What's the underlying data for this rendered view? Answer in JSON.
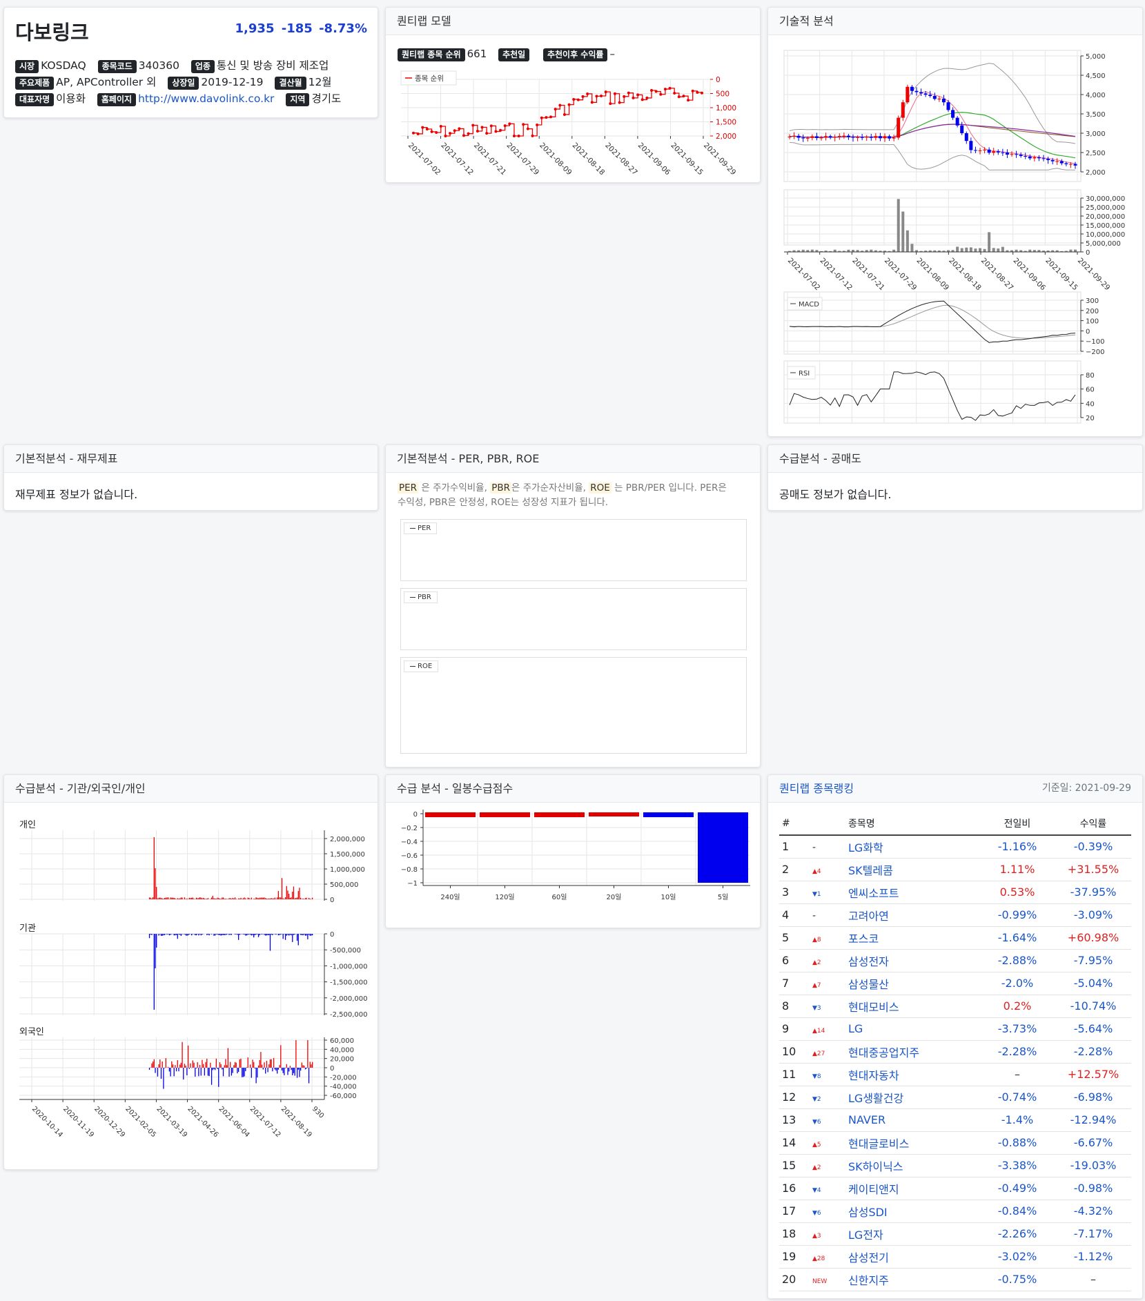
{
  "stock": {
    "name": "다보링크",
    "price": "1,935",
    "change": "-185",
    "change_pct": "-8.73%",
    "market_label": "시장",
    "market": "KOSDAQ",
    "code_label": "종목코드",
    "code": "340360",
    "industry_label": "업종",
    "industry": "통신 및 방송 장비 제조업",
    "product_label": "주요제품",
    "product": "AP, APController 외",
    "listing_label": "상장일",
    "listing": "2019-12-19",
    "fiscal_label": "결산월",
    "fiscal": "12월",
    "ceo_label": "대표자명",
    "ceo": "이용화",
    "homepage_label": "홈페이지",
    "homepage": "http://www.davolink.co.kr",
    "region_label": "지역",
    "region": "경기도"
  },
  "quantilab": {
    "title": "퀀티랩 모델",
    "rank_label": "퀀티랩 종목 순위",
    "rank": "661",
    "rec_label": "추천일",
    "ret_label": "추천이후 수익률",
    "ret": "–",
    "legend": "종목 순위",
    "y_ticks": [
      "0",
      "500",
      "1,000",
      "1,500",
      "2,000"
    ],
    "x_ticks": [
      "2021-07-02",
      "2021-07-12",
      "2021-07-21",
      "2021-07-29",
      "2021-08-09",
      "2021-08-18",
      "2021-08-27",
      "2021-09-06",
      "2021-09-15",
      "2021-09-29"
    ]
  },
  "technical": {
    "title": "기술적 분석",
    "price_ticks": [
      "5,000",
      "4,500",
      "4,000",
      "3,500",
      "3,000",
      "2,500",
      "2,000"
    ],
    "volume_ticks": [
      "30,000,000",
      "25,000,000",
      "20,000,000",
      "15,000,000",
      "10,000,000",
      "5,000,000",
      "0"
    ],
    "x_ticks": [
      "2021-07-02",
      "2021-07-12",
      "2021-07-21",
      "2021-07-29",
      "2021-08-09",
      "2021-08-18",
      "2021-08-27",
      "2021-09-06",
      "2021-09-15",
      "2021-09-29"
    ],
    "macd_label": "MACD",
    "macd_ticks": [
      "300",
      "200",
      "100",
      "0",
      "−100",
      "−200"
    ],
    "rsi_label": "RSI",
    "rsi_ticks": [
      "80",
      "60",
      "40",
      "20"
    ]
  },
  "fundamental": {
    "title": "기본적분석 - 재무제표",
    "empty": "재무제표 정보가 없습니다."
  },
  "ratios": {
    "title": "기본적분석 - PER, PBR, ROE",
    "t_per": "PER",
    "d_per": "은 주가수익비율,",
    "t_pbr": "PBR",
    "d_pbr": "은 주가순자산비율,",
    "t_roe": "ROE",
    "d_roe": "는 PBR/PER 입니다. PER은",
    "desc2": "수익성, PBR은 안정성, ROE는 성장성 지표가 됩니다.",
    "legend_per": "PER",
    "legend_pbr": "PBR",
    "legend_roe": "ROE"
  },
  "short": {
    "title": "수급분석 - 공매도",
    "empty": "공매도 정보가 없습니다."
  },
  "investors": {
    "title": "수급분석 - 기관/외국인/개인",
    "individual": "개인",
    "institution": "기관",
    "foreign": "외국인",
    "ind_ticks": [
      "2,000,000",
      "1,500,000",
      "1,000,000",
      "500,000",
      "0"
    ],
    "inst_ticks": [
      "0",
      "-500,000",
      "-1,000,000",
      "-1,500,000",
      "-2,000,000",
      "-2,500,000"
    ],
    "for_ticks": [
      "60,000",
      "40,000",
      "20,000",
      "0",
      "-20,000",
      "-40,000",
      "-60,000"
    ],
    "x_ticks": [
      "2020-10-14",
      "2020-11-19",
      "2020-12-29",
      "2021-02-05",
      "2021-03-19",
      "2021-04-26",
      "2021-06-04",
      "2021-07-12",
      "2021-08-19",
      "930"
    ]
  },
  "daily_score": {
    "title": "수급 분석 - 일봉수급점수",
    "y_ticks": [
      "0",
      "−0.2",
      "−0.4",
      "−0.6",
      "−0.8",
      "−1"
    ]
  },
  "chart_data": {
    "type": "bar",
    "categories": [
      "240일",
      "120일",
      "60일",
      "20일",
      "10일",
      "5일"
    ],
    "values": [
      -0.05,
      -0.05,
      -0.05,
      -0.04,
      -0.05,
      -1
    ],
    "ylim": [
      -1,
      0
    ],
    "colors": [
      "#e00000",
      "#e00000",
      "#e00000",
      "#e00000",
      "#0000ee",
      "#0000ee"
    ]
  },
  "ranking": {
    "title": "퀀티랩 종목랭킹",
    "date_label": "기준일:",
    "date": "2021-09-29",
    "headers": [
      "#",
      "종목명",
      "전일비",
      "수익률"
    ],
    "rows": [
      {
        "n": "1",
        "mv": "-",
        "mvdir": "neu",
        "name": "LG화학",
        "chg": "-1.16%",
        "cdir": "down",
        "ret": "-0.39%",
        "rdir": "down"
      },
      {
        "n": "2",
        "mv": "▲4",
        "mvdir": "up",
        "name": "SK텔레콤",
        "chg": "1.11%",
        "cdir": "up",
        "ret": "+31.55%",
        "rdir": "up"
      },
      {
        "n": "3",
        "mv": "▼1",
        "mvdir": "down",
        "name": "엔씨소프트",
        "chg": "0.53%",
        "cdir": "up",
        "ret": "-37.95%",
        "rdir": "down"
      },
      {
        "n": "4",
        "mv": "-",
        "mvdir": "neu",
        "name": "고려아연",
        "chg": "-0.99%",
        "cdir": "down",
        "ret": "-3.09%",
        "rdir": "down"
      },
      {
        "n": "5",
        "mv": "▲8",
        "mvdir": "up",
        "name": "포스코",
        "chg": "-1.64%",
        "cdir": "down",
        "ret": "+60.98%",
        "rdir": "up"
      },
      {
        "n": "6",
        "mv": "▲2",
        "mvdir": "up",
        "name": "삼성전자",
        "chg": "-2.88%",
        "cdir": "down",
        "ret": "-7.95%",
        "rdir": "down"
      },
      {
        "n": "7",
        "mv": "▲7",
        "mvdir": "up",
        "name": "삼성물산",
        "chg": "-2.0%",
        "cdir": "down",
        "ret": "-5.04%",
        "rdir": "down"
      },
      {
        "n": "8",
        "mv": "▼3",
        "mvdir": "down",
        "name": "현대모비스",
        "chg": "0.2%",
        "cdir": "up",
        "ret": "-10.74%",
        "rdir": "down"
      },
      {
        "n": "9",
        "mv": "▲14",
        "mvdir": "up",
        "name": "LG",
        "chg": "-3.73%",
        "cdir": "down",
        "ret": "-5.64%",
        "rdir": "down"
      },
      {
        "n": "10",
        "mv": "▲27",
        "mvdir": "up",
        "name": "현대중공업지주",
        "chg": "-2.28%",
        "cdir": "down",
        "ret": "-2.28%",
        "rdir": "down"
      },
      {
        "n": "11",
        "mv": "▼8",
        "mvdir": "down",
        "name": "현대자동차",
        "chg": "–",
        "cdir": "neu",
        "ret": "+12.57%",
        "rdir": "up"
      },
      {
        "n": "12",
        "mv": "▼2",
        "mvdir": "down",
        "name": "LG생활건강",
        "chg": "-0.74%",
        "cdir": "down",
        "ret": "-6.98%",
        "rdir": "down"
      },
      {
        "n": "13",
        "mv": "▼6",
        "mvdir": "down",
        "name": "NAVER",
        "chg": "-1.4%",
        "cdir": "down",
        "ret": "-12.94%",
        "rdir": "down"
      },
      {
        "n": "14",
        "mv": "▲5",
        "mvdir": "up",
        "name": "현대글로비스",
        "chg": "-0.88%",
        "cdir": "down",
        "ret": "-6.67%",
        "rdir": "down"
      },
      {
        "n": "15",
        "mv": "▲2",
        "mvdir": "up",
        "name": "SK하이닉스",
        "chg": "-3.38%",
        "cdir": "down",
        "ret": "-19.03%",
        "rdir": "down"
      },
      {
        "n": "16",
        "mv": "▼4",
        "mvdir": "down",
        "name": "케이티앤지",
        "chg": "-0.49%",
        "cdir": "down",
        "ret": "-0.98%",
        "rdir": "down"
      },
      {
        "n": "17",
        "mv": "▼6",
        "mvdir": "down",
        "name": "삼성SDI",
        "chg": "-0.84%",
        "cdir": "down",
        "ret": "-4.32%",
        "rdir": "down"
      },
      {
        "n": "18",
        "mv": "▲3",
        "mvdir": "up",
        "name": "LG전자",
        "chg": "-2.26%",
        "cdir": "down",
        "ret": "-7.17%",
        "rdir": "down"
      },
      {
        "n": "19",
        "mv": "▲28",
        "mvdir": "up",
        "name": "삼성전기",
        "chg": "-3.02%",
        "cdir": "down",
        "ret": "-1.12%",
        "rdir": "down"
      },
      {
        "n": "20",
        "mv": "NEW",
        "mvdir": "up",
        "name": "신한지주",
        "chg": "-0.75%",
        "cdir": "down",
        "ret": "–",
        "rdir": "neu"
      }
    ]
  }
}
